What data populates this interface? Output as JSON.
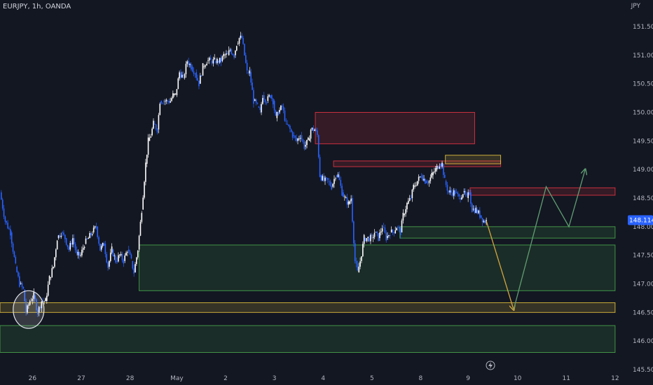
{
  "header": {
    "symbol_info": "EURJPY, 1h, OANDA",
    "currency": "JPY"
  },
  "chart_data": {
    "type": "candlestick",
    "y_range": [
      145.5,
      151.75
    ],
    "x_range": [
      0,
      1000
    ],
    "y_ticks": [
      "151.500",
      "151.000",
      "150.500",
      "150.000",
      "149.500",
      "149.000",
      "148.500",
      "148.000",
      "147.500",
      "147.000",
      "146.500",
      "146.000",
      "145.500"
    ],
    "x_ticks": [
      {
        "label": "26",
        "pos": 50
      },
      {
        "label": "27",
        "pos": 125
      },
      {
        "label": "28",
        "pos": 200
      },
      {
        "label": "May",
        "pos": 272
      },
      {
        "label": "2",
        "pos": 347
      },
      {
        "label": "3",
        "pos": 422
      },
      {
        "label": "4",
        "pos": 497
      },
      {
        "label": "5",
        "pos": 572
      },
      {
        "label": "8",
        "pos": 647
      },
      {
        "label": "9",
        "pos": 720
      },
      {
        "label": "10",
        "pos": 796
      },
      {
        "label": "11",
        "pos": 871
      },
      {
        "label": "12",
        "pos": 946
      }
    ],
    "current_price": "148.114",
    "price_path": [
      [
        0,
        148.6
      ],
      [
        8,
        148.1
      ],
      [
        16,
        147.9
      ],
      [
        24,
        147.3
      ],
      [
        30,
        147.0
      ],
      [
        36,
        146.9
      ],
      [
        40,
        146.5
      ],
      [
        46,
        146.7
      ],
      [
        52,
        146.8
      ],
      [
        58,
        146.5
      ],
      [
        64,
        146.7
      ],
      [
        70,
        146.7
      ],
      [
        76,
        147.1
      ],
      [
        82,
        147.3
      ],
      [
        88,
        147.8
      ],
      [
        94,
        147.9
      ],
      [
        100,
        147.8
      ],
      [
        106,
        147.6
      ],
      [
        112,
        147.8
      ],
      [
        118,
        147.5
      ],
      [
        124,
        147.5
      ],
      [
        130,
        147.7
      ],
      [
        136,
        147.8
      ],
      [
        142,
        147.9
      ],
      [
        148,
        148.0
      ],
      [
        154,
        147.6
      ],
      [
        160,
        147.7
      ],
      [
        166,
        147.3
      ],
      [
        172,
        147.6
      ],
      [
        178,
        147.4
      ],
      [
        184,
        147.5
      ],
      [
        190,
        147.4
      ],
      [
        196,
        147.6
      ],
      [
        202,
        147.4
      ],
      [
        206,
        147.2
      ],
      [
        212,
        147.6
      ],
      [
        218,
        148.3
      ],
      [
        224,
        149.1
      ],
      [
        228,
        149.5
      ],
      [
        232,
        149.6
      ],
      [
        236,
        149.8
      ],
      [
        242,
        149.7
      ],
      [
        246,
        150.2
      ],
      [
        250,
        150.2
      ],
      [
        256,
        150.2
      ],
      [
        262,
        150.2
      ],
      [
        266,
        150.3
      ],
      [
        270,
        150.3
      ],
      [
        276,
        150.7
      ],
      [
        282,
        150.6
      ],
      [
        288,
        150.9
      ],
      [
        294,
        150.8
      ],
      [
        300,
        150.7
      ],
      [
        306,
        150.5
      ],
      [
        312,
        150.8
      ],
      [
        318,
        150.9
      ],
      [
        324,
        150.9
      ],
      [
        330,
        150.9
      ],
      [
        334,
        150.9
      ],
      [
        340,
        150.9
      ],
      [
        344,
        151.0
      ],
      [
        350,
        151.0
      ],
      [
        354,
        151.1
      ],
      [
        360,
        151.0
      ],
      [
        364,
        151.2
      ],
      [
        368,
        151.3
      ],
      [
        372,
        151.3
      ],
      [
        376,
        151.0
      ],
      [
        380,
        150.7
      ],
      [
        384,
        150.7
      ],
      [
        390,
        150.2
      ],
      [
        396,
        150.1
      ],
      [
        400,
        150.0
      ],
      [
        404,
        150.3
      ],
      [
        410,
        150.2
      ],
      [
        416,
        150.3
      ],
      [
        420,
        150.2
      ],
      [
        424,
        149.9
      ],
      [
        428,
        150.0
      ],
      [
        434,
        150.1
      ],
      [
        440,
        149.8
      ],
      [
        446,
        149.7
      ],
      [
        450,
        149.6
      ],
      [
        456,
        149.5
      ],
      [
        462,
        149.6
      ],
      [
        468,
        149.4
      ],
      [
        474,
        149.5
      ],
      [
        478,
        149.7
      ],
      [
        484,
        149.7
      ],
      [
        488,
        149.6
      ],
      [
        492,
        148.9
      ],
      [
        498,
        148.8
      ],
      [
        504,
        148.8
      ],
      [
        510,
        148.7
      ],
      [
        516,
        148.9
      ],
      [
        520,
        148.9
      ],
      [
        526,
        148.6
      ],
      [
        530,
        148.5
      ],
      [
        536,
        148.4
      ],
      [
        540,
        148.5
      ],
      [
        546,
        147.4
      ],
      [
        550,
        147.2
      ],
      [
        554,
        147.4
      ],
      [
        560,
        147.8
      ],
      [
        566,
        147.8
      ],
      [
        572,
        147.8
      ],
      [
        576,
        147.9
      ],
      [
        582,
        147.8
      ],
      [
        588,
        148.0
      ],
      [
        594,
        147.8
      ],
      [
        600,
        147.9
      ],
      [
        604,
        147.9
      ],
      [
        610,
        148.0
      ],
      [
        616,
        147.9
      ],
      [
        620,
        148.2
      ],
      [
        626,
        148.4
      ],
      [
        632,
        148.5
      ],
      [
        636,
        148.7
      ],
      [
        642,
        148.8
      ],
      [
        648,
        148.9
      ],
      [
        654,
        148.8
      ],
      [
        660,
        148.8
      ],
      [
        664,
        148.9
      ],
      [
        670,
        149.0
      ],
      [
        676,
        149.1
      ],
      [
        680,
        149.1
      ],
      [
        684,
        148.8
      ],
      [
        690,
        148.6
      ],
      [
        694,
        148.6
      ],
      [
        700,
        148.6
      ],
      [
        706,
        148.5
      ],
      [
        712,
        148.6
      ],
      [
        718,
        148.5
      ],
      [
        722,
        148.6
      ],
      [
        726,
        148.3
      ],
      [
        732,
        148.3
      ],
      [
        738,
        148.2
      ],
      [
        744,
        148.1
      ],
      [
        748,
        148.1
      ]
    ]
  },
  "zones": [
    {
      "name": "supply-zone-upper",
      "x1": 485,
      "x2": 730,
      "y_top": 150.0,
      "y_bot": 149.45,
      "color": "#f23645"
    },
    {
      "name": "supply-zone-mid",
      "x1": 513,
      "x2": 770,
      "y_top": 149.15,
      "y_bot": 149.05,
      "color": "#f23645"
    },
    {
      "name": "supply-zone-yellow-top",
      "x1": 685,
      "x2": 770,
      "y_top": 149.25,
      "y_bot": 149.1,
      "color": "#f5d041"
    },
    {
      "name": "supply-zone-right",
      "x1": 723,
      "x2": 946,
      "y_top": 148.68,
      "y_bot": 148.55,
      "color": "#f23645"
    },
    {
      "name": "demand-zone-small",
      "x1": 615,
      "x2": 946,
      "y_top": 148.0,
      "y_bot": 147.8,
      "color": "#4caf50"
    },
    {
      "name": "demand-zone-large",
      "x1": 214,
      "x2": 946,
      "y_top": 147.68,
      "y_bot": 146.88,
      "color": "#4caf50"
    },
    {
      "name": "key-level-yellow",
      "x1": 0,
      "x2": 946,
      "y_top": 146.67,
      "y_bot": 146.5,
      "color": "#f5d041"
    },
    {
      "name": "demand-zone-bottom",
      "x1": 0,
      "x2": 946,
      "y_top": 146.27,
      "y_bot": 145.8,
      "color": "#4caf50"
    }
  ],
  "projections": [
    {
      "name": "bearish-projection-arrow",
      "color": "#d2a53e",
      "points": [
        [
          748,
          148.1
        ],
        [
          790,
          146.55
        ]
      ]
    },
    {
      "name": "bullish-projection-arrow",
      "color": "#5f9e72",
      "points": [
        [
          790,
          146.55
        ],
        [
          840,
          148.7
        ],
        [
          875,
          148.0
        ],
        [
          900,
          149.0
        ]
      ]
    }
  ],
  "circle_marker": {
    "x": 44,
    "y": 146.55,
    "rx": 22,
    "ry": 0.33
  }
}
